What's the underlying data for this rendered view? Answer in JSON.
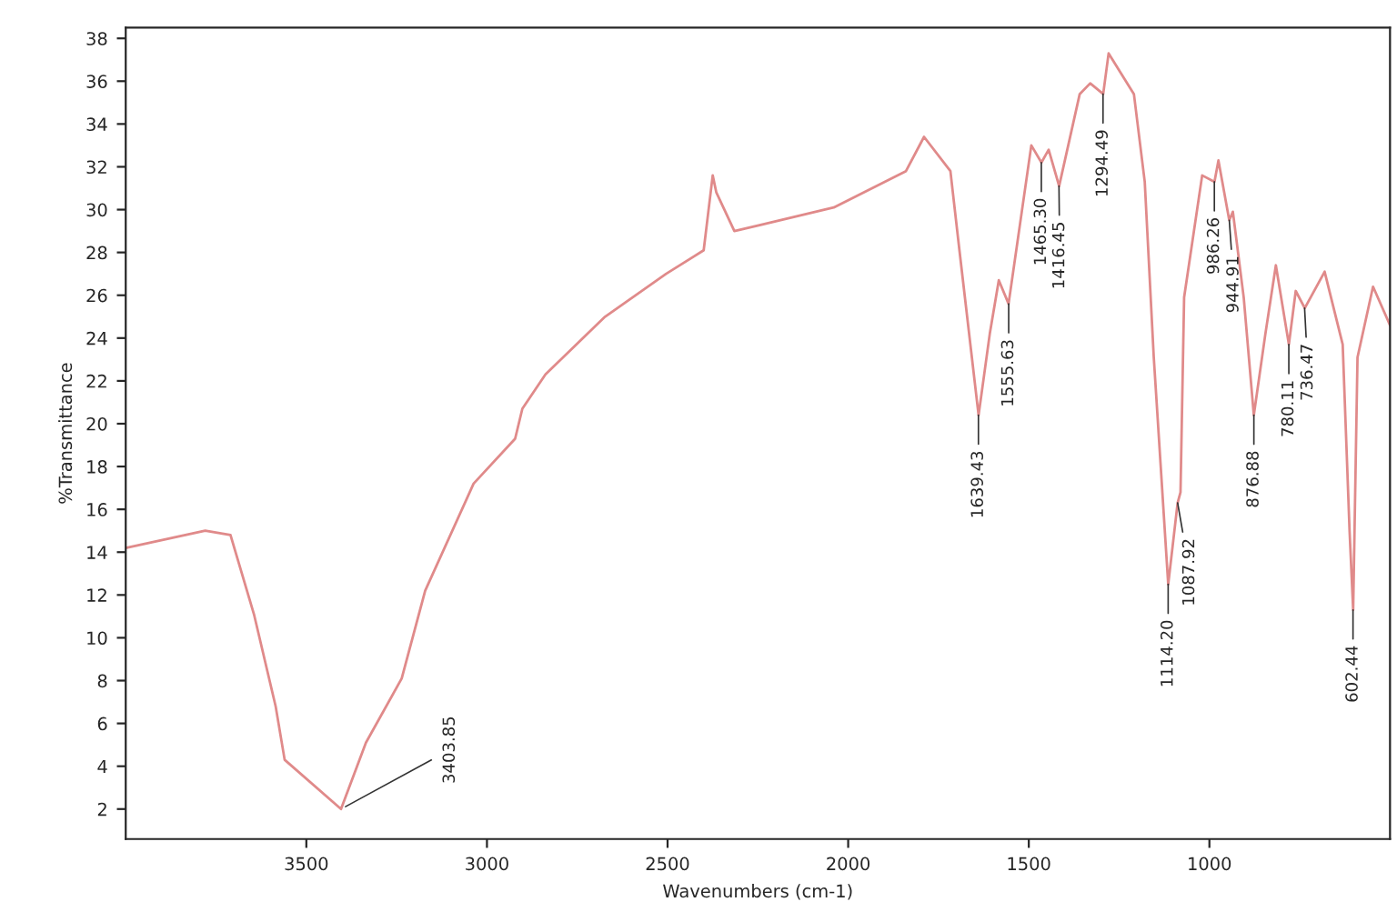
{
  "chart_data": {
    "type": "line",
    "xlabel": "Wavenumbers (cm-1)",
    "ylabel": "%Transmittance",
    "xlim": [
      4000,
      500
    ],
    "xticks": [
      3500,
      3000,
      2500,
      2000,
      1500,
      1000
    ],
    "ylim": [
      0.6,
      38.5
    ],
    "yticks": [
      2,
      4,
      6,
      8,
      10,
      12,
      14,
      16,
      18,
      20,
      22,
      24,
      26,
      28,
      30,
      32,
      34,
      36,
      38
    ],
    "grid": false,
    "legend": false,
    "series": [
      {
        "color": "#e08a8a",
        "x": [
          4000,
          3780,
          3710,
          3645,
          3585,
          3560,
          3404,
          3335,
          3236,
          3171,
          3037,
          2922,
          2902,
          2838,
          2673,
          2504,
          2400,
          2375,
          2365,
          2315,
          2240,
          2040,
          1840,
          1790,
          1717,
          1692,
          1639,
          1608,
          1583,
          1556,
          1493,
          1465,
          1445,
          1416,
          1359,
          1330,
          1294,
          1279,
          1209,
          1179,
          1154,
          1114,
          1088,
          1080,
          1070,
          1020,
          986,
          975,
          945,
          935,
          905,
          877,
          845,
          816,
          780,
          761,
          736,
          681,
          631,
          612,
          602,
          590,
          547,
          500
        ],
        "values": [
          14.2,
          15.0,
          14.8,
          11.1,
          6.8,
          4.3,
          2.0,
          5.1,
          8.1,
          12.2,
          17.2,
          19.3,
          20.7,
          22.3,
          25.0,
          27.0,
          28.1,
          31.6,
          30.8,
          29.0,
          29.3,
          30.1,
          31.8,
          33.4,
          31.8,
          28.1,
          20.4,
          24.2,
          26.7,
          25.6,
          33.0,
          32.2,
          32.8,
          31.1,
          35.4,
          35.9,
          35.4,
          37.3,
          35.4,
          31.3,
          23.1,
          12.5,
          16.3,
          16.8,
          25.9,
          31.6,
          31.3,
          32.3,
          29.5,
          29.9,
          25.9,
          20.4,
          24.2,
          27.4,
          23.7,
          26.2,
          25.4,
          27.1,
          23.7,
          15.0,
          11.3,
          23.1,
          26.4,
          24.6
        ]
      }
    ],
    "annotations": [
      {
        "text": "3403.85",
        "x": 3403.85,
        "y": 2.0
      },
      {
        "text": "1639.43",
        "x": 1639.43,
        "y": 20.4
      },
      {
        "text": "1555.63",
        "x": 1555.63,
        "y": 25.6
      },
      {
        "text": "1465.30",
        "x": 1465.3,
        "y": 32.2
      },
      {
        "text": "1416.45",
        "x": 1416.45,
        "y": 31.1
      },
      {
        "text": "1294.49",
        "x": 1294.49,
        "y": 35.4
      },
      {
        "text": "1114.20",
        "x": 1114.2,
        "y": 12.5
      },
      {
        "text": "1087.92",
        "x": 1087.92,
        "y": 16.3
      },
      {
        "text": "986.26",
        "x": 986.26,
        "y": 31.3
      },
      {
        "text": "944.91",
        "x": 944.91,
        "y": 29.5
      },
      {
        "text": "876.88",
        "x": 876.88,
        "y": 20.4
      },
      {
        "text": "780.11",
        "x": 780.11,
        "y": 23.7
      },
      {
        "text": "736.47",
        "x": 736.47,
        "y": 25.4
      },
      {
        "text": "602.44",
        "x": 602.44,
        "y": 11.3
      }
    ]
  }
}
